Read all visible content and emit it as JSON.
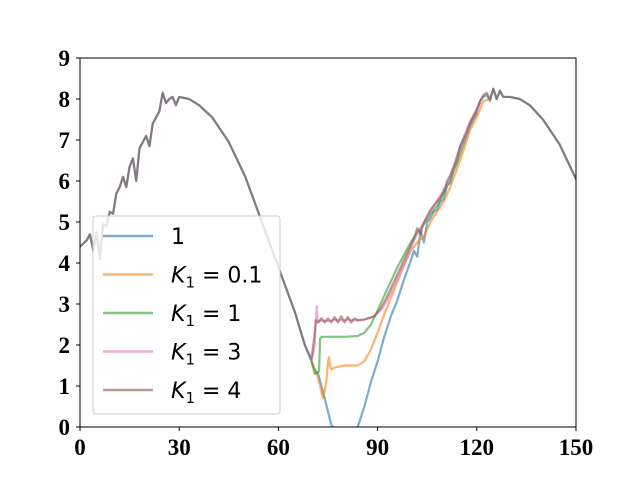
{
  "chart_data": {
    "type": "line",
    "title": "",
    "xlabel": "",
    "ylabel": "",
    "xlim": [
      0,
      150
    ],
    "ylim": [
      0,
      9
    ],
    "x_ticks": [
      0,
      30,
      60,
      90,
      120,
      150
    ],
    "y_ticks": [
      0,
      1,
      2,
      3,
      4,
      5,
      6,
      7,
      8,
      9
    ],
    "x_tick_labels": [
      "0",
      "30",
      "60",
      "90",
      "120",
      "150"
    ],
    "y_tick_labels": [
      "0",
      "1",
      "2",
      "3",
      "4",
      "5",
      "6",
      "7",
      "8",
      "9"
    ],
    "grid": false,
    "legend_position": "lower-left",
    "series": [
      {
        "name": "1",
        "color": "#1f77b4",
        "points": [
          [
            0,
            4.4
          ],
          [
            2,
            4.55
          ],
          [
            3,
            4.7
          ],
          [
            4,
            4.3
          ],
          [
            5,
            4.75
          ],
          [
            6,
            4.1
          ],
          [
            7,
            4.95
          ],
          [
            8,
            4.9
          ],
          [
            9,
            5.25
          ],
          [
            10,
            5.2
          ],
          [
            11,
            5.7
          ],
          [
            12,
            5.85
          ],
          [
            13,
            6.1
          ],
          [
            14,
            5.85
          ],
          [
            15,
            6.35
          ],
          [
            16,
            6.55
          ],
          [
            17,
            6.0
          ],
          [
            18,
            6.8
          ],
          [
            19,
            6.95
          ],
          [
            20,
            7.1
          ],
          [
            21,
            6.85
          ],
          [
            22,
            7.4
          ],
          [
            24,
            7.7
          ],
          [
            25,
            8.15
          ],
          [
            26,
            7.9
          ],
          [
            27,
            8.0
          ],
          [
            28,
            8.05
          ],
          [
            29,
            7.85
          ],
          [
            30,
            8.05
          ],
          [
            33,
            8.0
          ],
          [
            36,
            7.85
          ],
          [
            40,
            7.55
          ],
          [
            45,
            6.95
          ],
          [
            50,
            6.1
          ],
          [
            55,
            5.0
          ],
          [
            60,
            3.9
          ],
          [
            65,
            2.8
          ],
          [
            68,
            2.0
          ],
          [
            70,
            1.6
          ],
          [
            71,
            1.4
          ],
          [
            72,
            1.3
          ],
          [
            74,
            0.7
          ],
          [
            76,
            0.05
          ],
          [
            76.5,
            0.0
          ]
        ],
        "points2": [
          [
            84,
            0.0
          ],
          [
            86,
            0.5
          ],
          [
            88,
            1.1
          ],
          [
            90,
            1.6
          ],
          [
            92,
            2.2
          ],
          [
            94,
            2.7
          ],
          [
            96,
            3.1
          ],
          [
            98,
            3.6
          ],
          [
            100,
            4.05
          ],
          [
            101,
            4.3
          ],
          [
            102,
            4.15
          ],
          [
            103,
            4.8
          ],
          [
            104,
            4.5
          ],
          [
            105,
            5.0
          ],
          [
            106,
            5.1
          ],
          [
            107,
            5.25
          ],
          [
            108,
            5.3
          ],
          [
            109,
            5.5
          ],
          [
            110,
            5.55
          ],
          [
            111,
            5.9
          ],
          [
            112,
            5.95
          ],
          [
            113,
            6.3
          ],
          [
            114,
            6.45
          ],
          [
            115,
            6.85
          ],
          [
            116,
            7.0
          ],
          [
            117,
            7.15
          ],
          [
            118,
            7.4
          ],
          [
            119,
            7.55
          ],
          [
            120,
            7.7
          ],
          [
            121,
            7.95
          ],
          [
            122,
            8.05
          ],
          [
            123,
            8.1
          ],
          [
            124,
            7.95
          ],
          [
            125,
            8.25
          ],
          [
            126,
            8.0
          ],
          [
            127,
            8.2
          ],
          [
            128,
            8.05
          ],
          [
            130,
            8.05
          ],
          [
            133,
            8.0
          ],
          [
            136,
            7.85
          ],
          [
            140,
            7.5
          ],
          [
            145,
            6.9
          ],
          [
            150,
            6.05
          ]
        ]
      },
      {
        "name": "$K_1 = 0.1$",
        "color": "#ff7f0e",
        "points": [
          [
            70,
            1.6
          ],
          [
            72,
            1.2
          ],
          [
            73.5,
            0.7
          ],
          [
            74.5,
            1.1
          ],
          [
            75,
            1.6
          ],
          [
            75.3,
            1.7
          ],
          [
            75.6,
            1.5
          ],
          [
            76,
            1.4
          ],
          [
            77,
            1.45
          ],
          [
            80,
            1.5
          ],
          [
            84,
            1.5
          ],
          [
            86,
            1.6
          ],
          [
            88,
            1.9
          ],
          [
            90,
            2.3
          ],
          [
            92,
            2.75
          ],
          [
            94,
            3.15
          ],
          [
            96,
            3.55
          ],
          [
            98,
            3.95
          ],
          [
            100,
            4.3
          ],
          [
            102,
            4.5
          ],
          [
            104,
            4.65
          ],
          [
            106,
            5.0
          ],
          [
            108,
            5.25
          ],
          [
            110,
            5.5
          ],
          [
            112,
            5.85
          ],
          [
            114,
            6.3
          ],
          [
            116,
            6.75
          ],
          [
            118,
            7.25
          ],
          [
            120,
            7.55
          ],
          [
            122,
            7.95
          ],
          [
            124,
            8.0
          ]
        ]
      },
      {
        "name": "$K_1 = 1$",
        "color": "#2ca02c",
        "points": [
          [
            70,
            1.6
          ],
          [
            71,
            1.3
          ],
          [
            72.3,
            1.35
          ],
          [
            72.6,
            2.15
          ],
          [
            73,
            2.2
          ],
          [
            76,
            2.2
          ],
          [
            80,
            2.2
          ],
          [
            84,
            2.22
          ],
          [
            86,
            2.3
          ],
          [
            88,
            2.5
          ],
          [
            90,
            2.85
          ],
          [
            92,
            3.2
          ],
          [
            94,
            3.55
          ],
          [
            96,
            3.9
          ],
          [
            98,
            4.2
          ],
          [
            100,
            4.5
          ],
          [
            102,
            4.75
          ],
          [
            104,
            4.95
          ],
          [
            106,
            5.2
          ],
          [
            108,
            5.4
          ],
          [
            110,
            5.7
          ],
          [
            112,
            6.05
          ],
          [
            114,
            6.45
          ],
          [
            116,
            6.9
          ],
          [
            118,
            7.35
          ],
          [
            120,
            7.65
          ]
        ]
      },
      {
        "name": "$K_1 = 3$",
        "color": "#e377c2",
        "points": [
          [
            70,
            1.6
          ],
          [
            71,
            2.0
          ],
          [
            71.3,
            2.6
          ],
          [
            71.6,
            2.95
          ],
          [
            71.9,
            2.55
          ],
          [
            73,
            2.6
          ],
          [
            75,
            2.58
          ],
          [
            77,
            2.62
          ],
          [
            79,
            2.6
          ],
          [
            81,
            2.62
          ],
          [
            83,
            2.6
          ],
          [
            86,
            2.62
          ],
          [
            89,
            2.7
          ],
          [
            91,
            2.85
          ],
          [
            93,
            3.1
          ],
          [
            95,
            3.45
          ],
          [
            97,
            3.8
          ],
          [
            99,
            4.15
          ],
          [
            101,
            4.55
          ],
          [
            103,
            4.85
          ],
          [
            105,
            5.1
          ],
          [
            107,
            5.4
          ],
          [
            109,
            5.65
          ],
          [
            111,
            5.9
          ],
          [
            113,
            6.3
          ],
          [
            115,
            6.75
          ],
          [
            117,
            7.15
          ],
          [
            119,
            7.55
          ],
          [
            121,
            7.9
          ]
        ]
      },
      {
        "name": "$K_1 = 4$",
        "color": "#8c564b",
        "points": [
          [
            0,
            4.4
          ],
          [
            2,
            4.55
          ],
          [
            3,
            4.7
          ],
          [
            4,
            4.3
          ],
          [
            5,
            4.75
          ],
          [
            6,
            4.1
          ],
          [
            7,
            4.95
          ],
          [
            8,
            4.9
          ],
          [
            9,
            5.25
          ],
          [
            10,
            5.2
          ],
          [
            11,
            5.7
          ],
          [
            12,
            5.85
          ],
          [
            13,
            6.1
          ],
          [
            14,
            5.85
          ],
          [
            15,
            6.35
          ],
          [
            16,
            6.55
          ],
          [
            17,
            6.0
          ],
          [
            18,
            6.8
          ],
          [
            19,
            6.95
          ],
          [
            20,
            7.1
          ],
          [
            21,
            6.85
          ],
          [
            22,
            7.4
          ],
          [
            24,
            7.7
          ],
          [
            25,
            8.15
          ],
          [
            26,
            7.9
          ],
          [
            27,
            8.0
          ],
          [
            28,
            8.05
          ],
          [
            29,
            7.85
          ],
          [
            30,
            8.05
          ],
          [
            33,
            8.0
          ],
          [
            36,
            7.85
          ],
          [
            40,
            7.55
          ],
          [
            45,
            6.95
          ],
          [
            50,
            6.1
          ],
          [
            55,
            5.0
          ],
          [
            60,
            3.9
          ],
          [
            65,
            2.8
          ],
          [
            68,
            2.0
          ],
          [
            70,
            1.65
          ],
          [
            71,
            2.3
          ],
          [
            71.3,
            2.6
          ],
          [
            72,
            2.55
          ],
          [
            73,
            2.65
          ],
          [
            74,
            2.55
          ],
          [
            75,
            2.65
          ],
          [
            76,
            2.55
          ],
          [
            77,
            2.68
          ],
          [
            78,
            2.55
          ],
          [
            79,
            2.7
          ],
          [
            80,
            2.55
          ],
          [
            81,
            2.68
          ],
          [
            82,
            2.55
          ],
          [
            83,
            2.65
          ],
          [
            84,
            2.6
          ],
          [
            86,
            2.62
          ],
          [
            89,
            2.7
          ],
          [
            91,
            2.9
          ],
          [
            93,
            3.2
          ],
          [
            95,
            3.55
          ],
          [
            97,
            3.9
          ],
          [
            99,
            4.25
          ],
          [
            101,
            4.6
          ],
          [
            102,
            4.85
          ],
          [
            103,
            4.7
          ],
          [
            104,
            5.0
          ],
          [
            105,
            5.15
          ],
          [
            106,
            5.3
          ],
          [
            107,
            5.4
          ],
          [
            108,
            5.5
          ],
          [
            109,
            5.6
          ],
          [
            110,
            5.75
          ],
          [
            111,
            6.0
          ],
          [
            112,
            6.15
          ],
          [
            113,
            6.35
          ],
          [
            114,
            6.6
          ],
          [
            115,
            6.85
          ],
          [
            116,
            7.05
          ],
          [
            117,
            7.25
          ],
          [
            118,
            7.45
          ],
          [
            119,
            7.6
          ],
          [
            120,
            7.75
          ],
          [
            121,
            7.95
          ],
          [
            122,
            8.1
          ],
          [
            123,
            8.15
          ],
          [
            124,
            8.0
          ],
          [
            125,
            8.25
          ],
          [
            126,
            8.0
          ],
          [
            127,
            8.2
          ],
          [
            128,
            8.05
          ],
          [
            130,
            8.05
          ],
          [
            133,
            8.0
          ],
          [
            136,
            7.85
          ],
          [
            140,
            7.5
          ],
          [
            145,
            6.9
          ],
          [
            150,
            6.05
          ]
        ]
      }
    ],
    "legend": [
      {
        "label": "1",
        "color": "#1f77b4",
        "math": false
      },
      {
        "label": "K",
        "sub": "1",
        "rest": " = 0.1",
        "color": "#ff7f0e",
        "math": true
      },
      {
        "label": "K",
        "sub": "1",
        "rest": " = 1",
        "color": "#2ca02c",
        "math": true
      },
      {
        "label": "K",
        "sub": "1",
        "rest": " = 3",
        "color": "#e377c2",
        "math": true
      },
      {
        "label": "K",
        "sub": "1",
        "rest": " = 4",
        "color": "#8c564b",
        "math": true
      }
    ]
  }
}
